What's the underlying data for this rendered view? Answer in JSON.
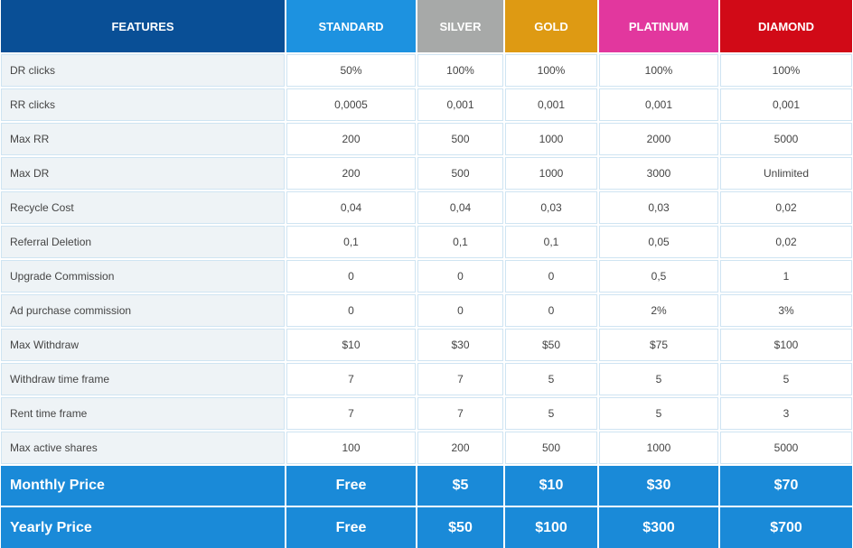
{
  "table": {
    "headers": [
      "FEATURES",
      "STANDARD",
      "SILVER",
      "GOLD",
      "PLATINUM",
      "DIAMOND"
    ],
    "header_colors": [
      "#094f96",
      "#1d92e0",
      "#a7a9a8",
      "#de9a13",
      "#e2379e",
      "#d10a17"
    ],
    "rows": [
      {
        "feature": "DR clicks",
        "values": [
          "50%",
          "100%",
          "100%",
          "100%",
          "100%"
        ]
      },
      {
        "feature": "RR clicks",
        "values": [
          "0,0005",
          "0,001",
          "0,001",
          "0,001",
          "0,001"
        ]
      },
      {
        "feature": "Max RR",
        "values": [
          "200",
          "500",
          "1000",
          "2000",
          "5000"
        ]
      },
      {
        "feature": "Max DR",
        "values": [
          "200",
          "500",
          "1000",
          "3000",
          "Unlimited"
        ]
      },
      {
        "feature": "Recycle Cost",
        "values": [
          "0,04",
          "0,04",
          "0,03",
          "0,03",
          "0,02"
        ]
      },
      {
        "feature": "Referral Deletion",
        "values": [
          "0,1",
          "0,1",
          "0,1",
          "0,05",
          "0,02"
        ]
      },
      {
        "feature": "Upgrade Commission",
        "values": [
          "0",
          "0",
          "0",
          "0,5",
          "1"
        ]
      },
      {
        "feature": "Ad purchase commission",
        "values": [
          "0",
          "0",
          "0",
          "2%",
          "3%"
        ]
      },
      {
        "feature": "Max Withdraw",
        "values": [
          "$10",
          "$30",
          "$50",
          "$75",
          "$100"
        ]
      },
      {
        "feature": "Withdraw time frame",
        "values": [
          "7",
          "7",
          "5",
          "5",
          "5"
        ]
      },
      {
        "feature": "Rent time frame",
        "values": [
          "7",
          "7",
          "5",
          "5",
          "3"
        ]
      },
      {
        "feature": "Max active shares",
        "values": [
          "100",
          "200",
          "500",
          "1000",
          "5000"
        ]
      }
    ],
    "price_rows": [
      {
        "label": "Monthly Price",
        "values": [
          "Free",
          "$5",
          "$10",
          "$30",
          "$70"
        ]
      },
      {
        "label": "Yearly Price",
        "values": [
          "Free",
          "$50",
          "$100",
          "$300",
          "$700"
        ]
      }
    ]
  }
}
